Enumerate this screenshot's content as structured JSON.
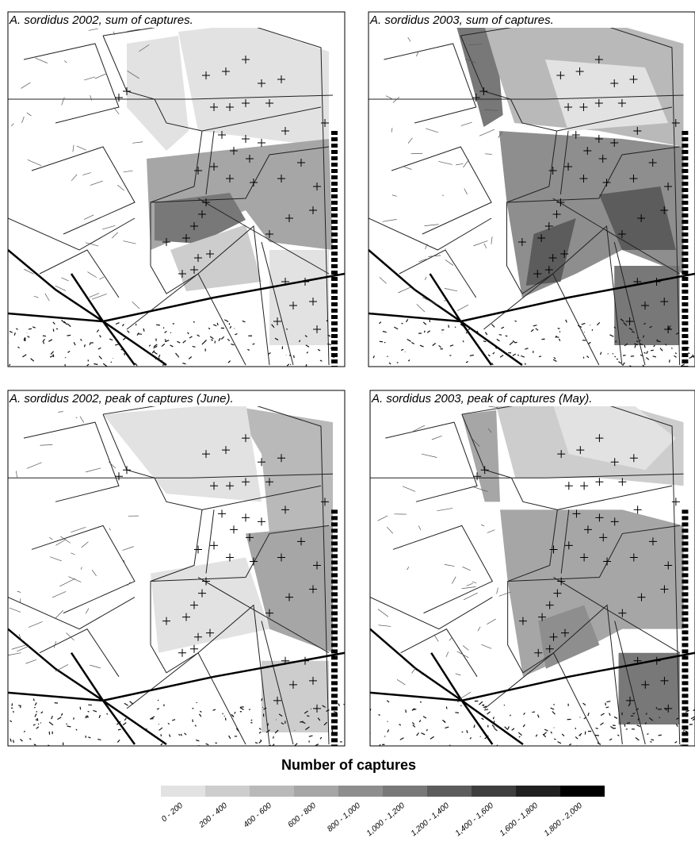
{
  "panels": [
    {
      "title": "A. sordidus  2002, sum of captures."
    },
    {
      "title": "A. sordidus  2003, sum of captures."
    },
    {
      "title": "A. sordidus  2002, peak of captures (June)."
    },
    {
      "title": "A. sordidus  2003, peak of captures (May)."
    }
  ],
  "legend": {
    "title": "Number of captures",
    "classes": [
      {
        "label": "0 - 200",
        "color": "#e2e2e2"
      },
      {
        "label": "200 - 400",
        "color": "#cdcdcd"
      },
      {
        "label": "400 - 600",
        "color": "#b9b9b9"
      },
      {
        "label": "600 - 800",
        "color": "#a6a6a6"
      },
      {
        "label": "800 - 1,000",
        "color": "#8e8e8e"
      },
      {
        "label": "1,000 - 1,200",
        "color": "#787878"
      },
      {
        "label": "1,200 - 1,400",
        "color": "#5c5c5c"
      },
      {
        "label": "1,400 - 1,600",
        "color": "#3e3e3e"
      },
      {
        "label": "1,600 - 1,800",
        "color": "#202020"
      },
      {
        "label": "1,800 - 2,000",
        "color": "#000000"
      }
    ]
  }
}
